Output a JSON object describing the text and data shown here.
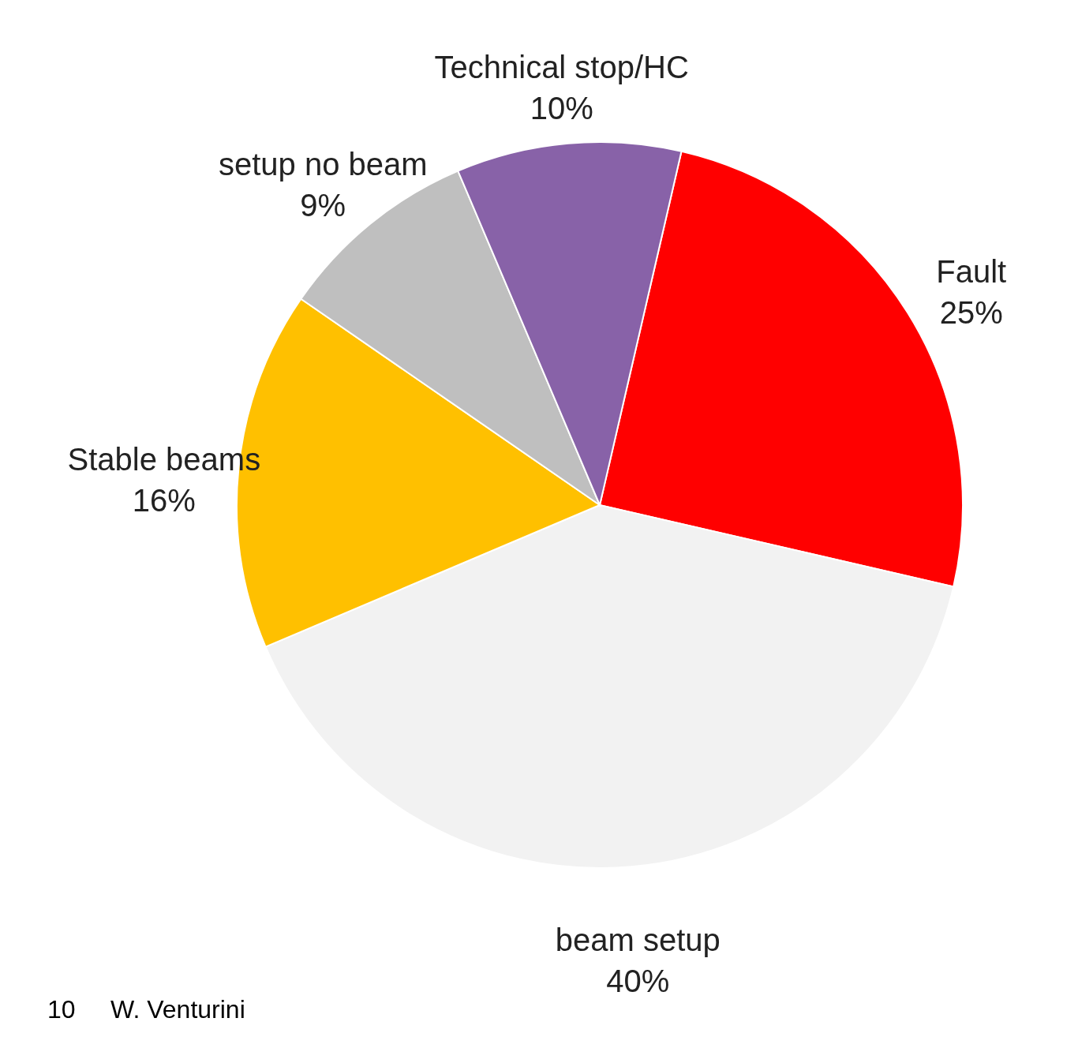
{
  "chart_data": {
    "type": "pie",
    "categories": [
      "Fault",
      "beam setup",
      "Stable beams",
      "setup no beam",
      "Technical stop/HC"
    ],
    "values": [
      25,
      40,
      16,
      9,
      10
    ],
    "value_labels": [
      "25%",
      "40%",
      "16%",
      "9%",
      "10%"
    ],
    "colors": [
      "#ff0000",
      "#f2f2f2",
      "#ffc000",
      "#bfbfbf",
      "#8862a8"
    ],
    "annotations": [
      "10",
      "W. Venturini"
    ]
  }
}
